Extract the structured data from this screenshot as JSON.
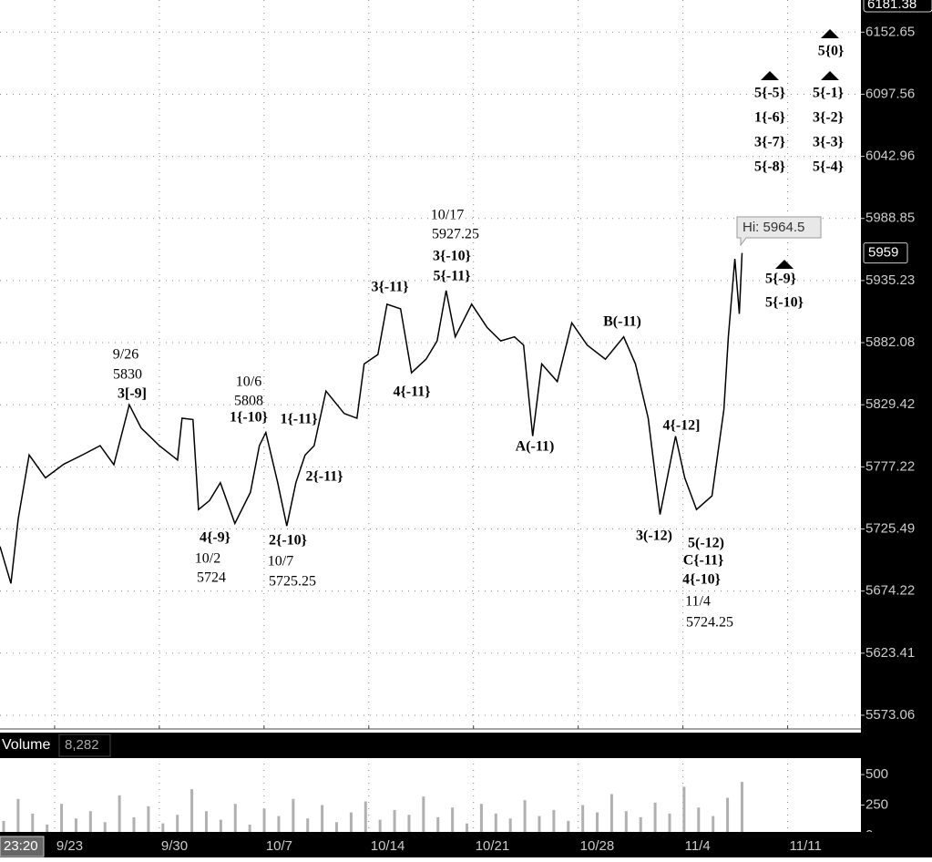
{
  "chart_data": {
    "type": "line",
    "log_scale": true,
    "grid": true,
    "top_label": "6181.38",
    "x": [
      -3.65,
      -2.92,
      -2.43,
      -1.7,
      -0.61,
      0.61,
      1.83,
      3.04,
      3.96,
      4.99,
      5.78,
      7.0,
      8.22,
      8.52,
      9.25,
      9.62,
      10.35,
      11.08,
      12.05,
      13.09,
      13.69,
      14.12,
      14.91,
      15.52,
      16.13,
      16.74,
      17.35,
      18.14,
      19.36,
      20.21,
      20.69,
      21.61,
      22.22,
      23.13,
      23.86,
      24.83,
      25.57,
      26.17,
      26.78,
      27.88,
      28.91,
      29.82,
      30.74,
      31.35,
      31.96,
      32.56,
      33.6,
      34.57,
      35.6,
      36.82,
      38.04,
      38.83,
      39.68,
      40.47,
      41.51,
      42.12,
      42.91,
      43.94,
      44.74,
      45.04,
      45.47,
      45.77,
      45.95
    ],
    "series": [
      {
        "name": "Price",
        "color": "#000000",
        "values": [
          5711,
          5680.5,
          5733.9,
          5787.2,
          5768,
          5779.5,
          5787,
          5795,
          5779,
          5829.4,
          5810,
          5795,
          5783,
          5818,
          5817,
          5741.6,
          5749,
          5764,
          5730,
          5756,
          5795,
          5806,
          5764,
          5728,
          5764,
          5787,
          5795,
          5841,
          5822,
          5818,
          5864,
          5872,
          5914.9,
          5911,
          5856.5,
          5868,
          5883.6,
          5926.6,
          5887,
          5915,
          5895,
          5883.6,
          5887,
          5880,
          5803,
          5864,
          5849,
          5899,
          5880,
          5868,
          5887,
          5864,
          5818,
          5737.5,
          5803,
          5768,
          5741.6,
          5753,
          5825.6,
          5887.5,
          5954,
          5906.6,
          5959
        ]
      }
    ],
    "xlim": [
      -3.65,
      53.9
    ],
    "xticks": [
      {
        "value": 0,
        "label": "9/23"
      },
      {
        "value": 7,
        "label": "9/30"
      },
      {
        "value": 14,
        "label": "10/7"
      },
      {
        "value": 21,
        "label": "10/14"
      },
      {
        "value": 28,
        "label": "10/21"
      },
      {
        "value": 35,
        "label": "10/28"
      },
      {
        "value": 42,
        "label": "11/4"
      },
      {
        "value": 49,
        "label": "11/11"
      }
    ],
    "ylim": [
      5562,
      6181.38
    ],
    "yticks": [
      6152.65,
      6097.56,
      6042.96,
      5988.85,
      5935.23,
      5882.08,
      5829.42,
      5777.22,
      5725.49,
      5674.22,
      5623.41,
      5573.06
    ],
    "high_label": "Hi: 5964.5",
    "last_price": 5959,
    "time_label": "23:20",
    "annotations": [
      "9/26",
      "5830",
      "3[-9]",
      "10/6",
      "5808",
      "1{-10}",
      "1{-11}",
      "2{-11}",
      "4{-9}",
      "10/2",
      "5724",
      "2{-10}",
      "10/7",
      "5725.25",
      "3{-11}",
      "4{-11}",
      "10/17",
      "5927.25",
      "3{-10}",
      "5{-11}",
      "A(-11)",
      "B(-11)",
      "4{-12]",
      "3(-12)",
      "5(-12)",
      "C{-11}",
      "4{-10}",
      "11/4",
      "5724.25",
      "5{-5}",
      "1{-6}",
      "3{-7}",
      "5{-8}",
      "5{-1}",
      "3{-2}",
      "3{-3}",
      "5{-4}",
      "5{0}",
      "5{-9}",
      "5{-10}"
    ],
    "volume": {
      "title": "Volume",
      "last": "8,282",
      "color": "#b0b0b0",
      "ylim": [
        0,
        560
      ],
      "yticks": [
        0,
        250,
        500
      ],
      "values": [
        120,
        300,
        180,
        90,
        260,
        140,
        200,
        110,
        330,
        150,
        240,
        100,
        170,
        380,
        200,
        130,
        260,
        90,
        220,
        160,
        300,
        140,
        250,
        110,
        190,
        280,
        130,
        210,
        170,
        320,
        150,
        230,
        100,
        260,
        180,
        140,
        290,
        160,
        210,
        120,
        250,
        190,
        340,
        200,
        150,
        270,
        180,
        400,
        230,
        160,
        310,
        440
      ]
    }
  }
}
